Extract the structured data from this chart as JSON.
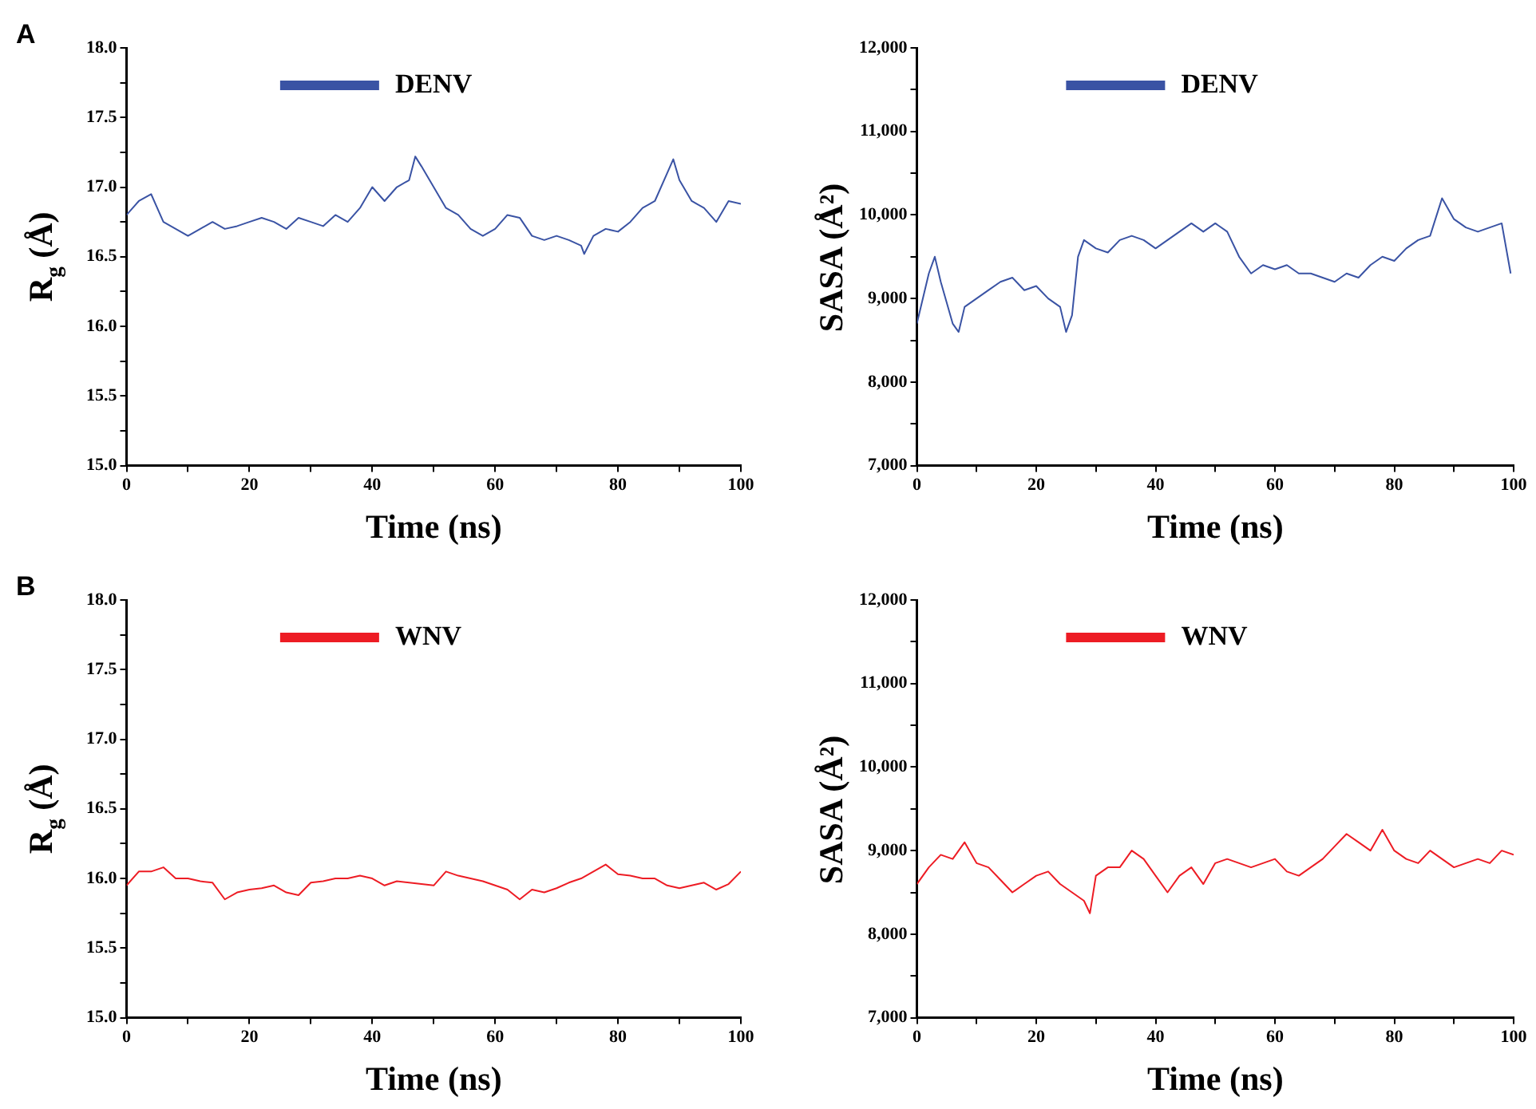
{
  "chart_data": [
    {
      "type": "line",
      "annotations": [
        "A"
      ],
      "xlabel": "Time (ns)",
      "ylabel": "R$_{g}$ (Å)",
      "xlim": [
        0,
        100
      ],
      "xticks": [
        0,
        {
          "value": 10,
          "label": null
        },
        20,
        {
          "value": 30,
          "label": null
        },
        40,
        {
          "value": 50,
          "label": null
        },
        60,
        {
          "value": 70,
          "label": null
        },
        80,
        {
          "value": 90,
          "label": null
        },
        100
      ],
      "ylim": [
        15,
        18
      ],
      "yticks": [
        {
          "value": 15,
          "label": "15.0"
        },
        {
          "value": 15.25,
          "label": null
        },
        {
          "value": 15.5,
          "label": "15.5"
        },
        {
          "value": 15.75,
          "label": null
        },
        {
          "value": 16,
          "label": "16.0"
        },
        {
          "value": 16.25,
          "label": null
        },
        {
          "value": 16.5,
          "label": "16.5"
        },
        {
          "value": 16.75,
          "label": null
        },
        {
          "value": 17,
          "label": "17.0"
        },
        {
          "value": 17.25,
          "label": null
        },
        {
          "value": 17.5,
          "label": "17.5"
        },
        {
          "value": 17.75,
          "label": null
        },
        {
          "value": 18,
          "label": "18.0"
        }
      ],
      "grid": false,
      "legend": "top",
      "marker": "none",
      "line_style": "solid",
      "x": [
        0,
        2,
        4,
        6,
        8,
        10,
        12,
        14,
        16,
        18,
        20,
        22,
        24,
        26,
        28,
        30,
        32,
        34,
        36,
        38,
        40,
        42,
        44,
        46,
        47,
        48,
        50,
        52,
        54,
        56,
        58,
        60,
        62,
        64,
        66,
        68,
        70,
        72,
        74,
        74.5,
        76,
        78,
        80,
        82,
        84,
        86,
        88,
        89,
        90,
        92,
        94,
        96,
        98,
        100
      ],
      "series": [
        {
          "name": "DENV",
          "color": "#3a53a4",
          "values": [
            16.8,
            16.9,
            16.95,
            16.75,
            16.7,
            16.65,
            16.7,
            16.75,
            16.7,
            16.72,
            16.75,
            16.78,
            16.75,
            16.7,
            16.78,
            16.75,
            16.72,
            16.8,
            16.75,
            16.85,
            17.0,
            16.9,
            17.0,
            17.05,
            17.22,
            17.15,
            17.0,
            16.85,
            16.8,
            16.7,
            16.65,
            16.7,
            16.8,
            16.78,
            16.65,
            16.62,
            16.65,
            16.62,
            16.58,
            16.52,
            16.65,
            16.7,
            16.68,
            16.75,
            16.85,
            16.9,
            17.1,
            17.2,
            17.05,
            16.9,
            16.85,
            16.75,
            16.9,
            16.88
          ]
        }
      ]
    },
    {
      "type": "line",
      "xlabel": "Time (ns)",
      "ylabel": "SASA (Å²)",
      "xlim": [
        0,
        100
      ],
      "xticks": [
        0,
        {
          "value": 10,
          "label": null
        },
        20,
        {
          "value": 30,
          "label": null
        },
        40,
        {
          "value": 50,
          "label": null
        },
        60,
        {
          "value": 70,
          "label": null
        },
        80,
        {
          "value": 90,
          "label": null
        },
        100
      ],
      "ylim": [
        7000,
        12000
      ],
      "yticks": [
        {
          "value": 7000,
          "label": "7,000"
        },
        {
          "value": 7500,
          "label": null
        },
        {
          "value": 8000,
          "label": "8,000"
        },
        {
          "value": 8500,
          "label": null
        },
        {
          "value": 9000,
          "label": "9,000"
        },
        {
          "value": 9500,
          "label": null
        },
        {
          "value": 10000,
          "label": "10,000"
        },
        {
          "value": 10500,
          "label": null
        },
        {
          "value": 11000,
          "label": "11,000"
        },
        {
          "value": 11500,
          "label": null
        },
        {
          "value": 12000,
          "label": "12,000"
        }
      ],
      "grid": false,
      "legend": "top",
      "marker": "none",
      "line_style": "solid",
      "x": [
        0,
        2,
        3,
        4,
        6,
        7,
        8,
        10,
        12,
        14,
        16,
        18,
        20,
        22,
        24,
        25,
        26,
        27,
        28,
        30,
        32,
        34,
        36,
        38,
        40,
        42,
        44,
        46,
        48,
        50,
        52,
        54,
        56,
        58,
        60,
        62,
        64,
        66,
        68,
        70,
        72,
        74,
        76,
        78,
        80,
        82,
        84,
        86,
        88,
        90,
        92,
        94,
        96,
        98,
        99.5
      ],
      "series": [
        {
          "name": "DENV",
          "color": "#3a53a4",
          "values": [
            8700,
            9300,
            9500,
            9200,
            8700,
            8600,
            8900,
            9000,
            9100,
            9200,
            9250,
            9100,
            9150,
            9000,
            8900,
            8600,
            8800,
            9500,
            9700,
            9600,
            9550,
            9700,
            9750,
            9700,
            9600,
            9700,
            9800,
            9900,
            9800,
            9900,
            9800,
            9500,
            9300,
            9400,
            9350,
            9400,
            9300,
            9300,
            9250,
            9200,
            9300,
            9250,
            9400,
            9500,
            9450,
            9600,
            9700,
            9750,
            10200,
            9950,
            9850,
            9800,
            9850,
            9900,
            9300
          ]
        }
      ]
    },
    {
      "type": "line",
      "annotations": [
        "B"
      ],
      "xlabel": "Time (ns)",
      "ylabel": "R$_{g}$ (Å)",
      "xlim": [
        0,
        100
      ],
      "xticks": [
        0,
        {
          "value": 10,
          "label": null
        },
        20,
        {
          "value": 30,
          "label": null
        },
        40,
        {
          "value": 50,
          "label": null
        },
        60,
        {
          "value": 70,
          "label": null
        },
        80,
        {
          "value": 90,
          "label": null
        },
        100
      ],
      "ylim": [
        15,
        18
      ],
      "yticks": [
        {
          "value": 15,
          "label": "15.0"
        },
        {
          "value": 15.25,
          "label": null
        },
        {
          "value": 15.5,
          "label": "15.5"
        },
        {
          "value": 15.75,
          "label": null
        },
        {
          "value": 16,
          "label": "16.0"
        },
        {
          "value": 16.25,
          "label": null
        },
        {
          "value": 16.5,
          "label": "16.5"
        },
        {
          "value": 16.75,
          "label": null
        },
        {
          "value": 17,
          "label": "17.0"
        },
        {
          "value": 17.25,
          "label": null
        },
        {
          "value": 17.5,
          "label": "17.5"
        },
        {
          "value": 17.75,
          "label": null
        },
        {
          "value": 18,
          "label": "18.0"
        }
      ],
      "grid": false,
      "legend": "top",
      "marker": "none",
      "line_style": "solid",
      "x": [
        0,
        2,
        4,
        6,
        8,
        10,
        12,
        14,
        16,
        18,
        20,
        22,
        24,
        26,
        28,
        30,
        32,
        34,
        36,
        38,
        40,
        42,
        44,
        46,
        48,
        50,
        52,
        54,
        56,
        58,
        60,
        62,
        64,
        66,
        68,
        70,
        72,
        74,
        76,
        78,
        80,
        82,
        84,
        86,
        88,
        90,
        92,
        94,
        96,
        98,
        100
      ],
      "series": [
        {
          "name": "WNV",
          "color": "#ed1c24",
          "values": [
            15.95,
            16.05,
            16.05,
            16.08,
            16.0,
            16.0,
            15.98,
            15.97,
            15.85,
            15.9,
            15.92,
            15.93,
            15.95,
            15.9,
            15.88,
            15.97,
            15.98,
            16.0,
            16.0,
            16.02,
            16.0,
            15.95,
            15.98,
            15.97,
            15.96,
            15.95,
            16.05,
            16.02,
            16.0,
            15.98,
            15.95,
            15.92,
            15.85,
            15.92,
            15.9,
            15.93,
            15.97,
            16.0,
            16.05,
            16.1,
            16.03,
            16.02,
            16.0,
            16.0,
            15.95,
            15.93,
            15.95,
            15.97,
            15.92,
            15.96,
            16.05
          ]
        }
      ]
    },
    {
      "type": "line",
      "xlabel": "Time (ns)",
      "ylabel": "SASA (Å²)",
      "xlim": [
        0,
        100
      ],
      "xticks": [
        0,
        {
          "value": 10,
          "label": null
        },
        20,
        {
          "value": 30,
          "label": null
        },
        40,
        {
          "value": 50,
          "label": null
        },
        60,
        {
          "value": 70,
          "label": null
        },
        80,
        {
          "value": 90,
          "label": null
        },
        100
      ],
      "ylim": [
        7000,
        12000
      ],
      "yticks": [
        {
          "value": 7000,
          "label": "7,000"
        },
        {
          "value": 7500,
          "label": null
        },
        {
          "value": 8000,
          "label": "8,000"
        },
        {
          "value": 8500,
          "label": null
        },
        {
          "value": 9000,
          "label": "9,000"
        },
        {
          "value": 9500,
          "label": null
        },
        {
          "value": 10000,
          "label": "10,000"
        },
        {
          "value": 10500,
          "label": null
        },
        {
          "value": 11000,
          "label": "11,000"
        },
        {
          "value": 11500,
          "label": null
        },
        {
          "value": 12000,
          "label": "12,000"
        }
      ],
      "grid": false,
      "legend": "top",
      "marker": "none",
      "line_style": "solid",
      "x": [
        0,
        2,
        4,
        6,
        8,
        10,
        12,
        14,
        16,
        18,
        20,
        22,
        24,
        26,
        28,
        29,
        30,
        32,
        34,
        36,
        38,
        40,
        42,
        44,
        46,
        48,
        50,
        52,
        54,
        56,
        58,
        60,
        62,
        64,
        66,
        68,
        70,
        72,
        74,
        76,
        78,
        80,
        82,
        84,
        86,
        88,
        90,
        92,
        94,
        96,
        98,
        100
      ],
      "series": [
        {
          "name": "WNV",
          "color": "#ed1c24",
          "values": [
            8600,
            8800,
            8950,
            8900,
            9100,
            8850,
            8800,
            8650,
            8500,
            8600,
            8700,
            8750,
            8600,
            8500,
            8400,
            8250,
            8700,
            8800,
            8800,
            9000,
            8900,
            8700,
            8500,
            8700,
            8800,
            8600,
            8850,
            8900,
            8850,
            8800,
            8850,
            8900,
            8750,
            8700,
            8800,
            8900,
            9050,
            9200,
            9100,
            9000,
            9250,
            9000,
            8900,
            8850,
            9000,
            8900,
            8800,
            8850,
            8900,
            8850,
            9000,
            8950
          ]
        }
      ]
    }
  ]
}
